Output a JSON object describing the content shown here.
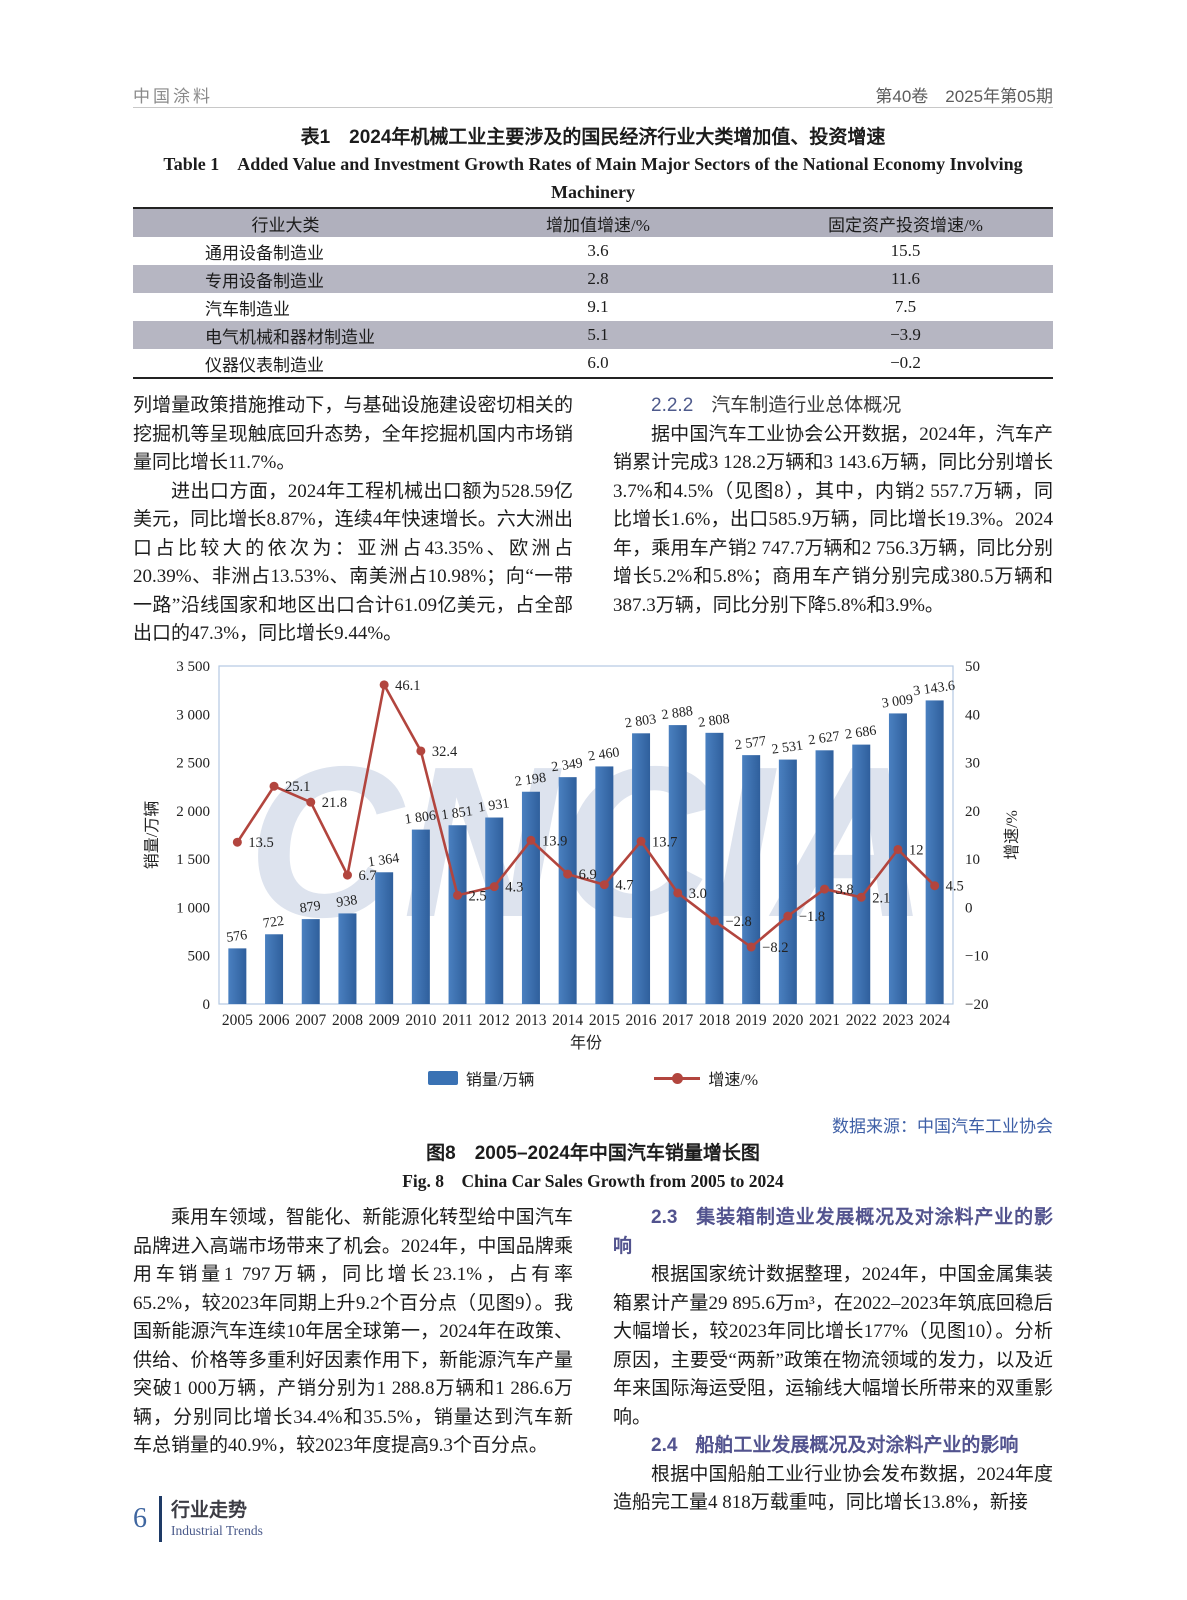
{
  "header": {
    "journal": "中国涂料",
    "issue": "第40卷　2025年第05期"
  },
  "table1": {
    "title_zh": "表1　2024年机械工业主要涉及的国民经济行业大类增加值、投资增速",
    "title_en_line1": "Table 1　Added Value and Investment Growth Rates of Main Major Sectors of the National Economy Involving Machinery",
    "title_en_line2": "Industry",
    "columns": [
      "行业大类",
      "增加值增速/%",
      "固定资产投资增速/%"
    ],
    "rows": [
      [
        "通用设备制造业",
        "3.6",
        "15.5"
      ],
      [
        "专用设备制造业",
        "2.8",
        "11.6"
      ],
      [
        "汽车制造业",
        "9.1",
        "7.5"
      ],
      [
        "电气机械和器材制造业",
        "5.1",
        "−3.9"
      ],
      [
        "仪器仪表制造业",
        "6.0",
        "−0.2"
      ]
    ]
  },
  "sections": {
    "left_top_p1": "列增量政策措施推动下，与基础设施建设密切相关的挖掘机等呈现触底回升态势，全年挖掘机国内市场销量同比增长11.7%。",
    "left_top_p2": "进出口方面，2024年工程机械出口额为528.59亿美元，同比增长8.87%，连续4年快速增长。六大洲出口占比较大的依次为：亚洲占43.35%、欧洲占20.39%、非洲占13.53%、南美洲占10.98%；向“一带一路”沿线国家和地区出口合计61.09亿美元，占全部出口的47.3%，同比增长9.44%。",
    "h222_num": "2.2.2",
    "h222_text": "汽车制造行业总体概况",
    "right_top_p1": "据中国汽车工业协会公开数据，2024年，汽车产销累计完成3 128.2万辆和3 143.6万辆，同比分别增长3.7%和4.5%（见图8），其中，内销2 557.7万辆，同比增长1.6%，出口585.9万辆，同比增长19.3%。2024年，乘用车产销2 747.7万辆和2 756.3万辆，同比分别增长5.2%和5.8%；商用车产销分别完成380.5万辆和387.3万辆，同比分别下降5.8%和3.9%。",
    "bottom_left_p1": "乘用车领域，智能化、新能源化转型给中国汽车品牌进入高端市场带来了机会。2024年，中国品牌乘用车销量1 797万辆，同比增长23.1%，占有率65.2%，较2023年同期上升9.2个百分点（见图9）。我国新能源汽车连续10年居全球第一，2024年在政策、供给、价格等多重利好因素作用下，新能源汽车产量突破1 000万辆，产销分别为1 288.8万辆和1 286.6万辆，分别同比增长34.4%和35.5%，销量达到汽车新车总销量的40.9%，较2023年度提高9.3个百分点。",
    "h23_num": "2.3",
    "h23_text": "集装箱制造业发展概况及对涂料产业的影响",
    "p23": "根据国家统计数据整理，2024年，中国金属集装箱累计产量29 895.6万m³，在2022–2023年筑底回稳后大幅增长，较2023年同比增长177%（见图10）。分析原因，主要受“两新”政策在物流领域的发力，以及近年来国际海运受阻，运输线大幅增长所带来的双重影响。",
    "h24_num": "2.4",
    "h24_text": "船舶工业发展概况及对涂料产业的影响",
    "p24": "根据中国船舶工业行业协会发布数据，2024年度造船完工量4 818万载重吨，同比增长13.8%，新接"
  },
  "chart_data": {
    "type": "bar+line",
    "categories": [
      "2005",
      "2006",
      "2007",
      "2008",
      "2009",
      "2010",
      "2011",
      "2012",
      "2013",
      "2014",
      "2015",
      "2016",
      "2017",
      "2018",
      "2019",
      "2020",
      "2021",
      "2022",
      "2023",
      "2024"
    ],
    "series": [
      {
        "name": "销量/万辆",
        "type": "bar",
        "axis": "left",
        "color": "#3a72b4",
        "values": [
          576,
          722,
          879,
          938,
          1364,
          1806,
          1851,
          1931,
          2198,
          2349,
          2460,
          2803,
          2888,
          2808,
          2577,
          2531,
          2627,
          2686,
          3009,
          3143.6
        ],
        "labels": [
          "576",
          "722",
          "879",
          "938",
          "1 364",
          "1 806",
          "1 851",
          "1 931",
          "2 198",
          "2 349",
          "2 460",
          "2 803",
          "2 888",
          "2 808",
          "2 577",
          "2 531",
          "2 627",
          "2 686",
          "3 009",
          "3 143.6"
        ]
      },
      {
        "name": "增速/%",
        "type": "line",
        "axis": "right",
        "color": "#b2453e",
        "values": [
          13.5,
          25.1,
          21.8,
          6.7,
          46.1,
          32.4,
          2.5,
          4.3,
          13.9,
          6.9,
          4.7,
          13.7,
          3.0,
          -2.8,
          -8.2,
          -1.8,
          3.8,
          2.1,
          12,
          4.5
        ],
        "labels": [
          "13.5",
          "25.1",
          "21.8",
          "6.7",
          "46.1",
          "32.4",
          "2.5",
          "4.3",
          "13.9",
          "6.9",
          "4.7",
          "13.7",
          "3.0",
          "−2.8",
          "−8.2",
          "−1.8",
          "3.8",
          "2.1",
          "12",
          "4.5"
        ]
      }
    ],
    "left_axis": {
      "label": "销量/万辆",
      "min": 0,
      "max": 3500,
      "step": 500,
      "ticks": [
        "0",
        "500",
        "1 000",
        "1 500",
        "2 000",
        "2 500",
        "3 000",
        "3 500"
      ]
    },
    "right_axis": {
      "label": "增速/%",
      "min": -20,
      "max": 50,
      "step": 10,
      "ticks": [
        "−20",
        "−10",
        "0",
        "10",
        "20",
        "30",
        "40",
        "50"
      ]
    },
    "xlabel": "年份",
    "legend_position": "bottom",
    "grid": false,
    "watermark": "CNCIA"
  },
  "figure8": {
    "source": "数据来源：中国汽车工业协会",
    "caption_zh": "图8　2005–2024年中国汽车销量增长图",
    "caption_en": "Fig. 8　China Car Sales Growth from 2005 to 2024"
  },
  "footer": {
    "page": "6",
    "section_zh": "行业走势",
    "section_en": "Industrial Trends"
  }
}
